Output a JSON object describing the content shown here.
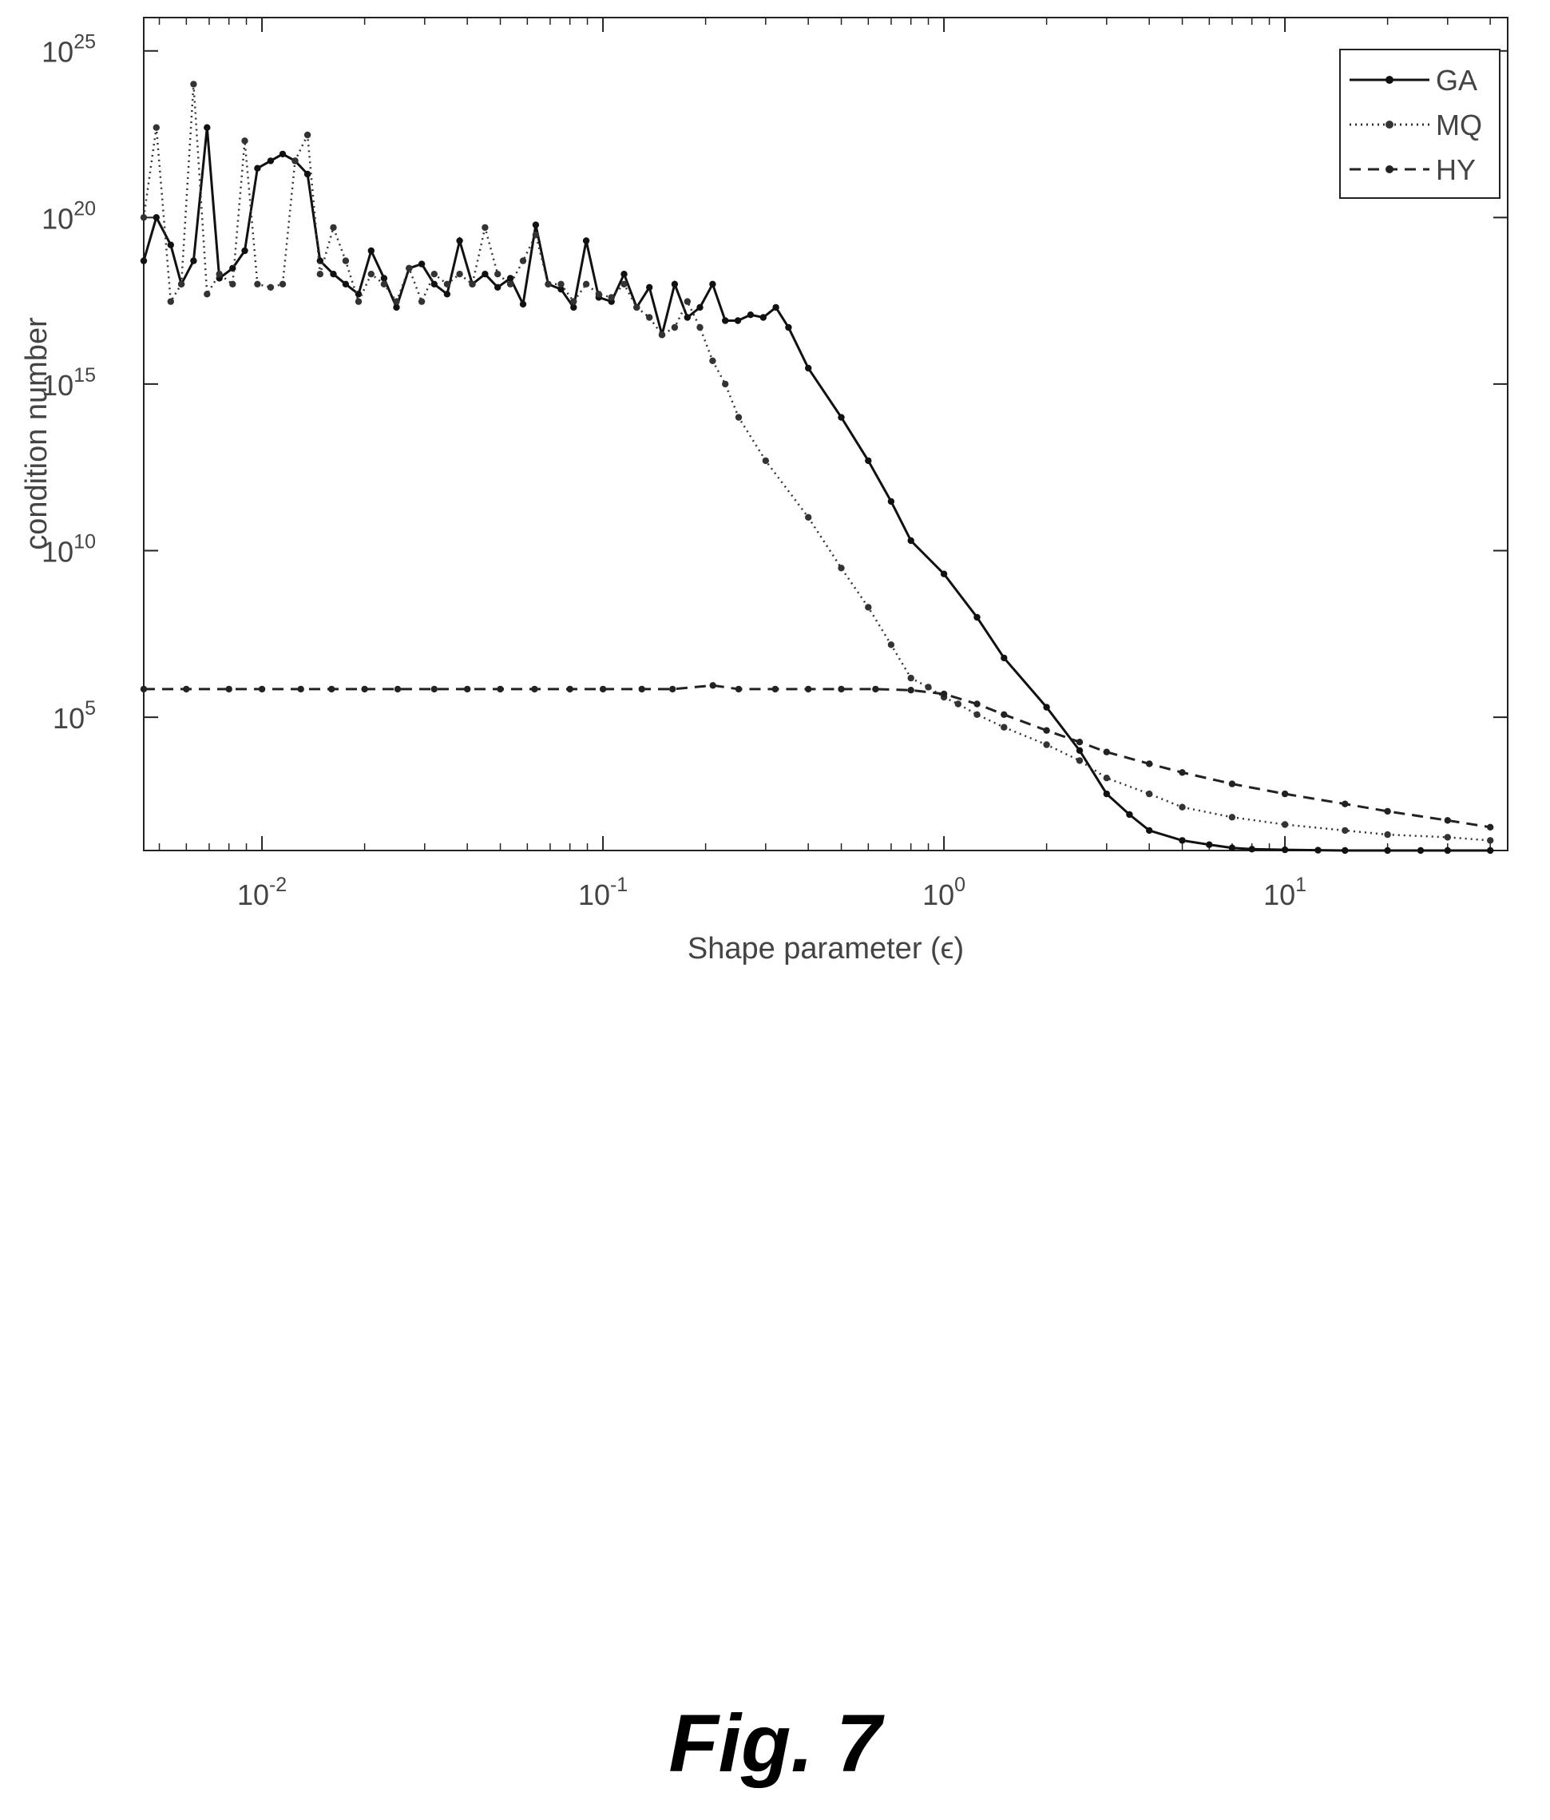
{
  "figure": {
    "caption": "Fig. 7"
  },
  "chart_data": {
    "type": "line",
    "title": "",
    "xlabel": "Shape parameter (ϵ)",
    "ylabel": "condition number",
    "xscale": "log",
    "yscale": "log",
    "xlim": [
      0.0045,
      45
    ],
    "ylim": [
      10,
      1e+26
    ],
    "x_ticks": [
      {
        "value": 0.01,
        "base": "10",
        "exp": "-2"
      },
      {
        "value": 0.1,
        "base": "10",
        "exp": "-1"
      },
      {
        "value": 1,
        "base": "10",
        "exp": "0"
      },
      {
        "value": 10,
        "base": "10",
        "exp": "1"
      }
    ],
    "y_ticks": [
      {
        "value": 100000.0,
        "base": "10",
        "exp": "5"
      },
      {
        "value": 10000000000.0,
        "base": "10",
        "exp": "10"
      },
      {
        "value": 1000000000000000.0,
        "base": "10",
        "exp": "15"
      },
      {
        "value": 1e+20,
        "base": "10",
        "exp": "20"
      },
      {
        "value": 1e+25,
        "base": "10",
        "exp": "25"
      }
    ],
    "grid": false,
    "legend_position": "top-right",
    "series": [
      {
        "name": "GA",
        "line_style": "solid",
        "color": "#111111",
        "x": [
          0.0045,
          0.0049,
          0.0054,
          0.0058,
          0.0063,
          0.0069,
          0.0075,
          0.0082,
          0.0089,
          0.0097,
          0.0106,
          0.0115,
          0.0125,
          0.0136,
          0.0148,
          0.0162,
          0.0176,
          0.0192,
          0.0209,
          0.0228,
          0.0248,
          0.027,
          0.0294,
          0.032,
          0.0349,
          0.038,
          0.0414,
          0.0451,
          0.0491,
          0.0535,
          0.0583,
          0.0635,
          0.0691,
          0.0753,
          0.082,
          0.0893,
          0.0972,
          0.1059,
          0.1153,
          0.1256,
          0.1368,
          0.149,
          0.1623,
          0.1768,
          0.1925,
          0.2097,
          0.2284,
          0.2487,
          0.2709,
          0.2951,
          0.3214,
          0.35,
          0.4,
          0.5,
          0.6,
          0.7,
          0.8,
          1.0,
          1.25,
          1.5,
          2.0,
          2.5,
          3.0,
          3.5,
          4.0,
          5.0,
          6.0,
          7.0,
          8.0,
          10.0,
          12.5,
          15.0,
          20.0,
          25.0,
          30.0,
          40.0
        ],
        "y": [
          5e+18,
          1e+20,
          1.5e+19,
          1e+18,
          5e+18,
          5e+22,
          1.5e+18,
          3e+18,
          1e+19,
          3e+21,
          5e+21,
          8e+21,
          5e+21,
          2e+21,
          5e+18,
          2e+18,
          1e+18,
          5e+17,
          1e+19,
          1.5e+18,
          2e+17,
          3e+18,
          4e+18,
          1e+18,
          5e+17,
          2e+19,
          1e+18,
          2e+18,
          8e+17,
          1.5e+18,
          2.5e+17,
          6e+19,
          1e+18,
          7e+17,
          2e+17,
          2e+19,
          4e+17,
          3e+17,
          2e+18,
          2e+17,
          8e+17,
          3e+16,
          1e+18,
          1e+17,
          2e+17,
          1e+18,
          8e+16,
          8e+16,
          1.2e+17,
          1e+17,
          2e+17,
          5e+16,
          3000000000000000.0,
          100000000000000.0,
          5000000000000.0,
          300000000000.0,
          20000000000.0,
          2000000000.0,
          100000000.0,
          6000000.0,
          200000.0,
          10000.0,
          500.0,
          120.0,
          40.0,
          20.0,
          15.0,
          12.0,
          11.0,
          10.5,
          10.2,
          10.0,
          10.0,
          10.0,
          10.0,
          10.0
        ]
      },
      {
        "name": "MQ",
        "line_style": "dotted",
        "color": "#333333",
        "x": [
          0.0045,
          0.0049,
          0.0054,
          0.0058,
          0.0063,
          0.0069,
          0.0075,
          0.0082,
          0.0089,
          0.0097,
          0.0106,
          0.0115,
          0.0125,
          0.0136,
          0.0148,
          0.0162,
          0.0176,
          0.0192,
          0.0209,
          0.0228,
          0.0248,
          0.027,
          0.0294,
          0.032,
          0.0349,
          0.038,
          0.0414,
          0.0451,
          0.0491,
          0.0535,
          0.0583,
          0.0635,
          0.0691,
          0.0753,
          0.082,
          0.0893,
          0.0972,
          0.1059,
          0.1153,
          0.1256,
          0.1368,
          0.149,
          0.1623,
          0.1768,
          0.1925,
          0.2097,
          0.2284,
          0.25,
          0.3,
          0.4,
          0.5,
          0.6,
          0.7,
          0.8,
          0.9,
          1.0,
          1.1,
          1.25,
          1.5,
          2.0,
          2.5,
          3.0,
          4.0,
          5.0,
          7.0,
          10.0,
          15.0,
          20.0,
          30.0,
          40.0
        ],
        "y": [
          1e+20,
          5e+22,
          3e+17,
          1e+18,
          1e+24,
          5e+17,
          2e+18,
          1e+18,
          2e+22,
          1e+18,
          8e+17,
          1e+18,
          5e+21,
          3e+22,
          2e+18,
          5e+19,
          5e+18,
          3e+17,
          2e+18,
          1e+18,
          3e+17,
          3e+18,
          3e+17,
          2e+18,
          1e+18,
          2e+18,
          1e+18,
          5e+19,
          2e+18,
          1e+18,
          5e+18,
          3e+19,
          1e+18,
          1e+18,
          3e+17,
          1e+18,
          5e+17,
          4e+17,
          1e+18,
          2e+17,
          1e+17,
          3e+16,
          5e+16,
          3e+17,
          5e+16,
          5000000000000000.0,
          1000000000000000.0,
          100000000000000.0,
          5000000000000.0,
          100000000000.0,
          3000000000.0,
          200000000.0,
          15000000.0,
          1500000.0,
          800000.0,
          400000.0,
          250000.0,
          120000.0,
          50000.0,
          15000.0,
          5000.0,
          1500.0,
          500.0,
          200.0,
          100.0,
          60.0,
          40.0,
          30.0,
          25.0,
          20.0
        ]
      },
      {
        "name": "HY",
        "line_style": "dashed",
        "color": "#222222",
        "x": [
          0.0045,
          0.006,
          0.008,
          0.01,
          0.013,
          0.016,
          0.02,
          0.025,
          0.032,
          0.04,
          0.05,
          0.063,
          0.08,
          0.1,
          0.13,
          0.16,
          0.21,
          0.25,
          0.32,
          0.4,
          0.5,
          0.63,
          0.8,
          1.0,
          1.25,
          1.5,
          2.0,
          2.5,
          3.0,
          4.0,
          5.0,
          7.0,
          10.0,
          15.0,
          20.0,
          30.0,
          40.0
        ],
        "y": [
          700000.0,
          700000.0,
          700000.0,
          700000.0,
          700000.0,
          700000.0,
          700000.0,
          700000.0,
          700000.0,
          700000.0,
          700000.0,
          700000.0,
          700000.0,
          700000.0,
          700000.0,
          700000.0,
          900000.0,
          700000.0,
          700000.0,
          700000.0,
          700000.0,
          700000.0,
          650000.0,
          500000.0,
          250000.0,
          120000.0,
          40000.0,
          18000.0,
          9000.0,
          4000.0,
          2200.0,
          1000.0,
          500.0,
          250.0,
          150.0,
          80.0,
          50.0
        ]
      }
    ]
  }
}
